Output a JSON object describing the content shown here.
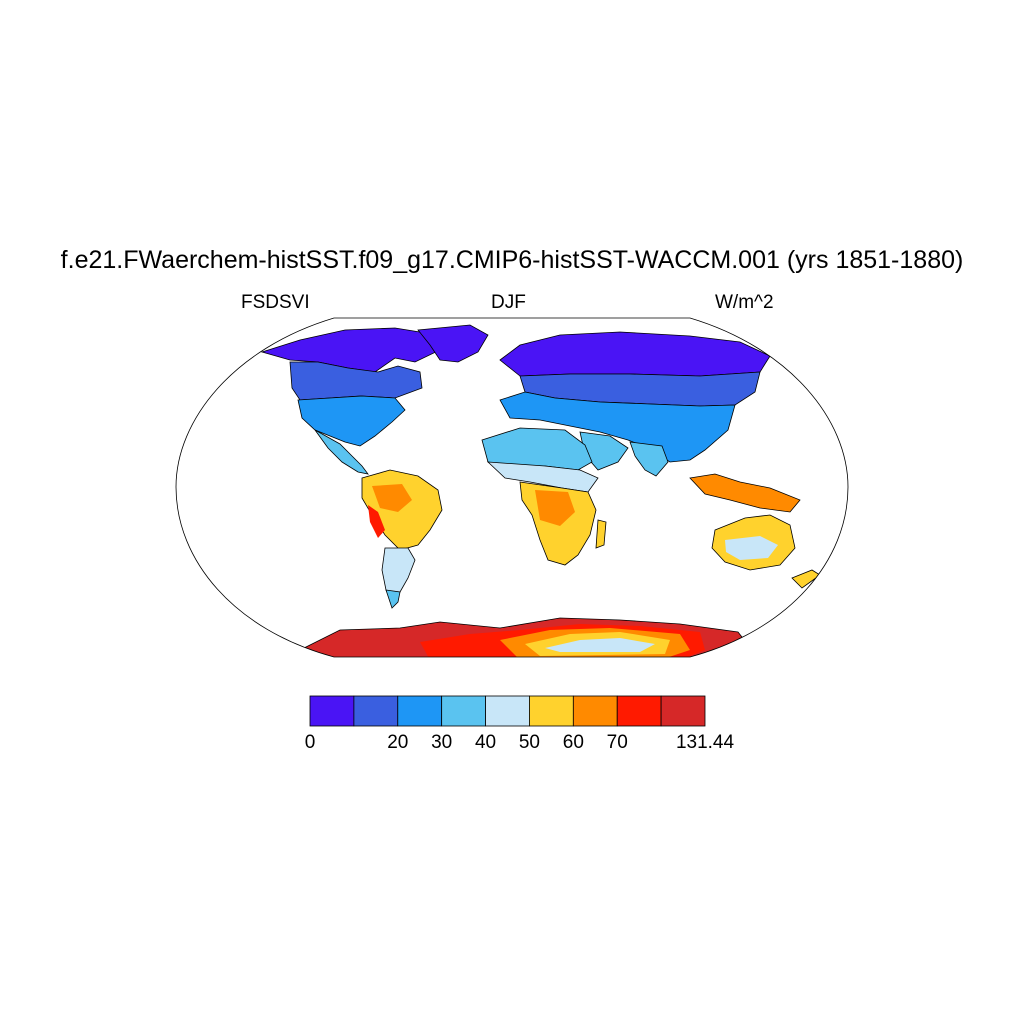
{
  "title": "f.e21.FWaerchem-histSST.f09_g17.CMIP6-histSST-WACCM.001 (yrs 1851-1880)",
  "left_label": "FSDSVI",
  "center_label": "DJF",
  "right_label": "W/m^2",
  "colorbar": {
    "colors": [
      "#4a14f5",
      "#3a5fe0",
      "#1e96f5",
      "#5ac3f0",
      "#c8e6f8",
      "#ffd22d",
      "#ff8a00",
      "#ff1a00",
      "#d62828"
    ],
    "labels": [
      "0",
      "20",
      "30",
      "40",
      "50",
      "60",
      "70",
      "131.44"
    ]
  }
}
